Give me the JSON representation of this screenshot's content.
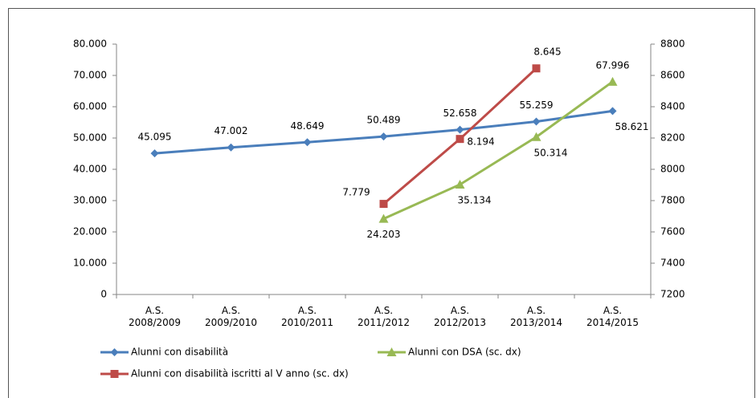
{
  "chart_data": {
    "type": "line",
    "categories": [
      "A.S. 2008/2009",
      "A.S. 2009/2010",
      "A.S. 2010/2011",
      "A.S. 2011/2012",
      "A.S. 2012/2013",
      "A.S. 2013/2014",
      "A.S. 2014/2015"
    ],
    "series": [
      {
        "name": "Alunni con disabilità",
        "color": "#4a7ebb",
        "marker": "diamond",
        "values": [
          45095,
          47002,
          48649,
          50489,
          52658,
          55259,
          58621
        ],
        "value_labels": [
          "45.095",
          "47.002",
          "48.649",
          "50.489",
          "52.658",
          "55.259",
          "58.621"
        ]
      },
      {
        "name": "Alunni con DSA (sc. dx)",
        "color": "#98b954",
        "marker": "triangle",
        "values": [
          null,
          null,
          null,
          24203,
          35134,
          50314,
          67996
        ],
        "value_labels": [
          null,
          null,
          null,
          "24.203",
          "35.134",
          "50.314",
          "67.996"
        ]
      },
      {
        "name": "Alunni con disabilità iscritti al V anno (sc. dx)",
        "color": "#be4b48",
        "marker": "square",
        "axis": "y2",
        "values": [
          null,
          null,
          null,
          7779,
          8194,
          8645,
          null
        ],
        "value_labels": [
          null,
          null,
          null,
          "7.779",
          "8.194",
          "8.645",
          null
        ]
      }
    ],
    "ylim": [
      0,
      80000
    ],
    "yticks": [
      0,
      {
        "value": 10000,
        "label": "10.000"
      },
      {
        "value": 20000,
        "label": "20.000"
      },
      {
        "value": 30000,
        "label": "30.000"
      },
      {
        "value": 40000,
        "label": "40.000"
      },
      {
        "value": 50000,
        "label": "50.000"
      },
      {
        "value": 60000,
        "label": "60.000"
      },
      {
        "value": 70000,
        "label": "70.000"
      },
      {
        "value": 80000,
        "label": "80.000"
      }
    ],
    "y2lim": [
      7200,
      8800
    ],
    "y2ticks": [
      7200,
      7400,
      7600,
      7800,
      8000,
      8200,
      8400,
      8600,
      8800
    ]
  }
}
